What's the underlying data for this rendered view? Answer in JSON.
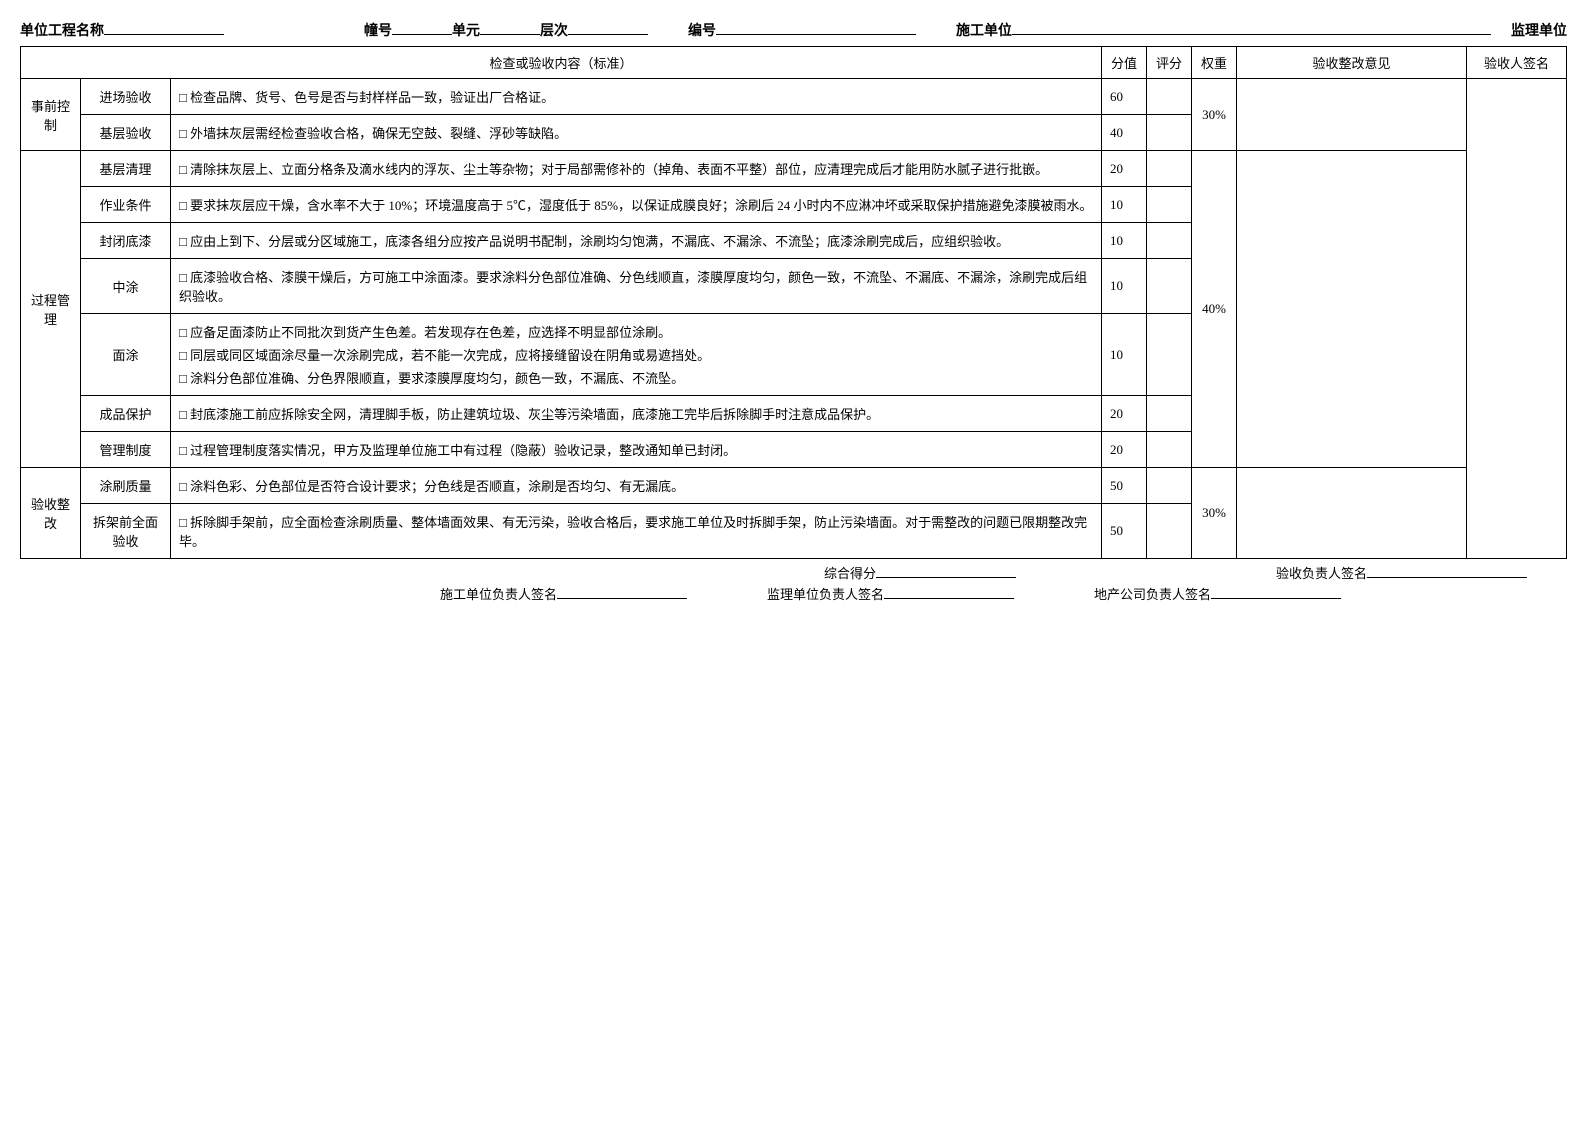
{
  "header": {
    "project_label": "单位工程名称",
    "block_label": "幢号",
    "unit_label": "单元",
    "floor_label": "层次",
    "serial_label": "编号",
    "constr_label": "施工单位",
    "supervisor_label": "监理单位"
  },
  "table": {
    "head": {
      "content": "检查或验收内容（标准）",
      "score": "分值",
      "eval": "评分",
      "weight": "权重",
      "opinion": "验收整改意见",
      "signer": "验收人签名"
    },
    "sections": [
      {
        "name": "事前控制",
        "weight": "30%",
        "rows": [
          {
            "step": "进场验收",
            "items": [
              "检查品牌、货号、色号是否与封样样品一致，验证出厂合格证。"
            ],
            "score": "60"
          },
          {
            "step": "基层验收",
            "items": [
              "外墙抹灰层需经检查验收合格，确保无空鼓、裂缝、浮砂等缺陷。"
            ],
            "score": "40"
          }
        ]
      },
      {
        "name": "过程管理",
        "weight": "40%",
        "rows": [
          {
            "step": "基层清理",
            "items": [
              "清除抹灰层上、立面分格条及滴水线内的浮灰、尘土等杂物；对于局部需修补的（掉角、表面不平整）部位，应清理完成后才能用防水腻子进行批嵌。"
            ],
            "score": "20"
          },
          {
            "step": "作业条件",
            "items": [
              "要求抹灰层应干燥，含水率不大于 10%；环境温度高于 5℃，湿度低于 85%，以保证成膜良好；涂刷后 24 小时内不应淋冲坏或采取保护措施避免漆膜被雨水。"
            ],
            "score": "10"
          },
          {
            "step": "封闭底漆",
            "items": [
              "应由上到下、分层或分区域施工，底漆各组分应按产品说明书配制，涂刷均匀饱满，不漏底、不漏涂、不流坠；底漆涂刷完成后，应组织验收。"
            ],
            "score": "10"
          },
          {
            "step": "中涂",
            "items": [
              "底漆验收合格、漆膜干燥后，方可施工中涂面漆。要求涂料分色部位准确、分色线顺直，漆膜厚度均匀，颜色一致，不流坠、不漏底、不漏涂，涂刷完成后组织验收。"
            ],
            "score": "10"
          },
          {
            "step": "面涂",
            "items": [
              "应备足面漆防止不同批次到货产生色差。若发现存在色差，应选择不明显部位涂刷。",
              "同层或同区域面涂尽量一次涂刷完成，若不能一次完成，应将接缝留设在阴角或易遮挡处。",
              "涂料分色部位准确、分色界限顺直，要求漆膜厚度均匀，颜色一致，不漏底、不流坠。"
            ],
            "score": "10"
          },
          {
            "step": "成品保护",
            "items": [
              "封底漆施工前应拆除安全网，清理脚手板，防止建筑垃圾、灰尘等污染墙面，底漆施工完毕后拆除脚手时注意成品保护。"
            ],
            "score": "20"
          },
          {
            "step": "管理制度",
            "items": [
              "过程管理制度落实情况，甲方及监理单位施工中有过程（隐蔽）验收记录，整改通知单已封闭。"
            ],
            "score": "20"
          }
        ]
      },
      {
        "name": "验收整改",
        "weight": "30%",
        "rows": [
          {
            "step": "涂刷质量",
            "items": [
              "涂料色彩、分色部位是否符合设计要求；分色线是否顺直，涂刷是否均匀、有无漏底。"
            ],
            "score": "50"
          },
          {
            "step": "拆架前全面验收",
            "items": [
              "拆除脚手架前，应全面检查涂刷质量、整体墙面效果、有无污染，验收合格后，要求施工单位及时拆脚手架，防止污染墙面。对于需整改的问题已限期整改完毕。"
            ],
            "score": "50"
          }
        ]
      }
    ]
  },
  "footer": {
    "total_label": "综合得分",
    "insp_sign_label": "验收负责人签名",
    "constr_sign_label": "施工单位负责人签名",
    "super_sign_label": "监理单位负责人签名",
    "prop_sign_label": "地产公司负责人签名"
  }
}
